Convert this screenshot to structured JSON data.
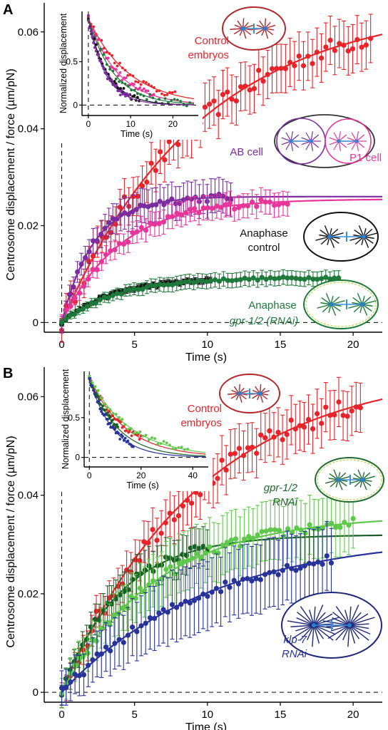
{
  "figure": {
    "panels": [
      {
        "label": "A",
        "annotations": [
          {
            "lines": [
              "Control",
              "embryos"
            ],
            "color": "#e8242a"
          },
          {
            "lines": [
              "AB cell"
            ],
            "color": "#7b2d9f"
          },
          {
            "lines": [
              "P1 cell"
            ],
            "color": "#e8359a"
          },
          {
            "lines": [
              "Anaphase",
              "control"
            ],
            "color": "#111111"
          },
          {
            "lines": [
              "Anaphase",
              "gpr-1/2 (RNAi)"
            ],
            "color": "#1e7a3a"
          }
        ],
        "icons": [
          "control-embryo-spindle-icon",
          "two-cell-embryo-icon",
          "anaphase-control-spindle-icon",
          "anaphase-gpr-rnai-spindle-icon"
        ]
      },
      {
        "label": "B",
        "annotations": [
          {
            "lines": [
              "Control",
              "embryos"
            ],
            "color": "#e8242a"
          },
          {
            "lines": [
              "gpr-1/2",
              "RNAi"
            ],
            "color": "#1e6b2e"
          },
          {
            "lines": [
              "klp-7",
              "RNAi"
            ],
            "color": "#27339a"
          }
        ],
        "icons": [
          "control-embryo-spindle-icon",
          "gpr-rnai-spindle-icon",
          "klp7-rnai-spindle-icon"
        ]
      }
    ]
  },
  "chart_data": [
    {
      "type": "scatter",
      "panel": "A",
      "xlabel": "Time (s)",
      "ylabel": "Centrosome displacement / force (µm/pN)",
      "xlim": [
        -1.2,
        22
      ],
      "ylim": [
        -0.002,
        0.066
      ],
      "xticks": [
        0,
        5,
        10,
        15,
        20
      ],
      "xtick_labels": [
        "0",
        "5",
        "10",
        "15",
        "20"
      ],
      "yticks": [
        0,
        0.02,
        0.04,
        0.06
      ],
      "ytick_labels": [
        "0",
        "0.02",
        "0.04",
        "0.06"
      ],
      "series": [
        {
          "color": "#e8242a",
          "A": 0.066,
          "tau": 9.5,
          "tmax": 21.2,
          "n": 70,
          "err": 0.005,
          "fit_end": 22
        },
        {
          "color": "#7b2d9f",
          "A": 0.026,
          "tau": 2.2,
          "tmax": 11.6,
          "n": 44,
          "err": 0.0035,
          "fit_end": 22
        },
        {
          "color": "#e8359a",
          "A": 0.0255,
          "tau": 4.0,
          "tmax": 15.5,
          "n": 52,
          "err": 0.0025,
          "fit_end": 22
        },
        {
          "color": "#111111",
          "A": 0.0092,
          "tau": 3.5,
          "tmax": 10.2,
          "n": 40,
          "err": 0.0006,
          "fit_end": 19
        },
        {
          "color": "#1e7a3a",
          "A": 0.0093,
          "tau": 3.8,
          "tmax": 19.0,
          "n": 66,
          "err": 0.0015,
          "fit_end": 19
        }
      ],
      "inset": {
        "xlabel": "Time (s)",
        "ylabel": "Normalized displacement",
        "xlim": [
          -1.5,
          26
        ],
        "ylim": [
          -0.12,
          1.08
        ],
        "xticks": [
          0,
          10,
          20
        ],
        "xtick_labels": [
          "0",
          "10",
          "20"
        ],
        "yticks": [
          0,
          0.5
        ],
        "ytick_labels": [
          "0",
          "0.5"
        ],
        "series": [
          {
            "color": "#e8242a",
            "tau": 9.5,
            "tmax": 20.5
          },
          {
            "color": "#e8359a",
            "tau": 7.0,
            "tmax": 15.5
          },
          {
            "color": "#1e7a3a",
            "tau": 6.0,
            "tmax": 24
          },
          {
            "color": "#111111",
            "tau": 4.5,
            "tmax": 12
          },
          {
            "color": "#7b2d9f",
            "tau": 4.0,
            "tmax": 10
          }
        ]
      }
    },
    {
      "type": "scatter",
      "panel": "B",
      "xlabel": "Time (s)",
      "ylabel": "Centrosome displacement / force (µm/pN)",
      "xlim": [
        -1.2,
        22
      ],
      "ylim": [
        -0.002,
        0.066
      ],
      "xticks": [
        0,
        5,
        10,
        15,
        20
      ],
      "xtick_labels": [
        "0",
        "5",
        "10",
        "15",
        "20"
      ],
      "yticks": [
        0,
        0.02,
        0.04,
        0.06
      ],
      "ytick_labels": [
        "0",
        "0.02",
        "0.04",
        "0.06"
      ],
      "series": [
        {
          "color": "#e8242a",
          "A": 0.066,
          "tau": 9.5,
          "tmax": 20.5,
          "n": 70,
          "err": 0.005,
          "fit_end": 22
        },
        {
          "color": "#1b5e28",
          "A": 0.032,
          "tau": 4.0,
          "tmax": 10.0,
          "n": 36,
          "err": 0.004,
          "fit_end": 22
        },
        {
          "color": "#5ec84a",
          "A": 0.036,
          "tau": 6.5,
          "tmax": 20.0,
          "n": 68,
          "err": 0.006,
          "fit_end": 22
        },
        {
          "color": "#27339a",
          "A": 0.032,
          "tau": 10.0,
          "tmax": 18.5,
          "n": 62,
          "err": 0.007,
          "fit_end": 22
        }
      ],
      "inset": {
        "xlabel": "Time (s)",
        "ylabel": "Normalized displacement",
        "xlim": [
          -2,
          46
        ],
        "ylim": [
          -0.12,
          1.08
        ],
        "xticks": [
          0,
          20,
          40
        ],
        "xtick_labels": [
          "0",
          "20",
          "40"
        ],
        "yticks": [
          0,
          0.5
        ],
        "ytick_labels": [
          "0",
          "0.5"
        ],
        "series": [
          {
            "color": "#e8242a",
            "tau": 14.0,
            "tmax": 20
          },
          {
            "color": "#1b5e28",
            "tau": 11.0,
            "tmax": 11
          },
          {
            "color": "#5ec84a",
            "tau": 16.0,
            "tmax": 38
          },
          {
            "color": "#27339a",
            "tau": 9.0,
            "tmax": 17
          }
        ]
      }
    }
  ]
}
